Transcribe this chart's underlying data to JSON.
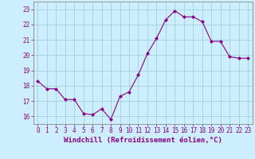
{
  "x": [
    0,
    1,
    2,
    3,
    4,
    5,
    6,
    7,
    8,
    9,
    10,
    11,
    12,
    13,
    14,
    15,
    16,
    17,
    18,
    19,
    20,
    21,
    22,
    23
  ],
  "y": [
    18.3,
    17.8,
    17.8,
    17.1,
    17.1,
    16.2,
    16.1,
    16.5,
    15.8,
    17.3,
    17.6,
    18.7,
    20.1,
    21.1,
    22.3,
    22.9,
    22.5,
    22.5,
    22.2,
    20.9,
    20.9,
    19.9,
    19.8,
    19.8
  ],
  "xlim": [
    -0.5,
    23.5
  ],
  "ylim": [
    15.5,
    23.5
  ],
  "yticks": [
    16,
    17,
    18,
    19,
    20,
    21,
    22,
    23
  ],
  "xticks": [
    0,
    1,
    2,
    3,
    4,
    5,
    6,
    7,
    8,
    9,
    10,
    11,
    12,
    13,
    14,
    15,
    16,
    17,
    18,
    19,
    20,
    21,
    22,
    23
  ],
  "line_color": "#880088",
  "marker_color": "#880088",
  "bg_color": "#cceeff",
  "grid_color": "#99cccc",
  "xlabel": "Windchill (Refroidissement éolien,°C)",
  "xlabel_fontsize": 6.5,
  "tick_fontsize": 5.5,
  "tick_color": "#880088",
  "axis_color": "#888888"
}
